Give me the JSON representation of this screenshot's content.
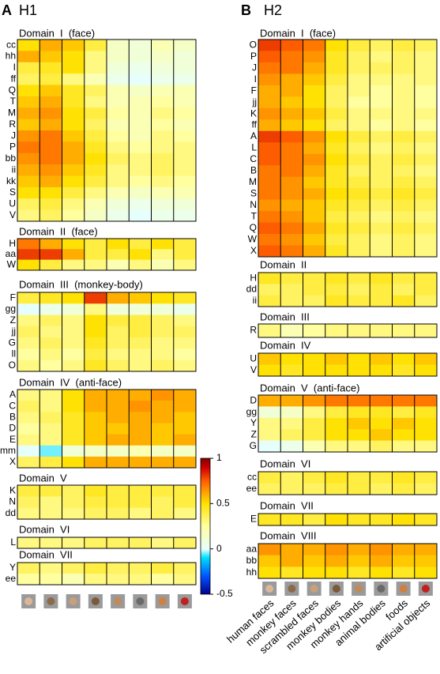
{
  "categories": [
    "human faces",
    "monkey faces",
    "scrambled faces",
    "monkey bodies",
    "monkey hands",
    "animal bodies",
    "foods",
    "artificial objects"
  ],
  "colorbar": {
    "lim": [
      -0.5,
      1
    ],
    "ticks": [
      1,
      0.5,
      0,
      -0.5
    ]
  },
  "panels": [
    {
      "letter": "A",
      "title": "H1",
      "domains": [
        {
          "title": "Domain  I  (face)",
          "rows": [
            "cc",
            "hh",
            "I",
            "ff",
            "Q",
            "T",
            "M",
            "R",
            "J",
            "P",
            "bb",
            "ii",
            "kk",
            "S",
            "U",
            "V"
          ],
          "values": [
            [
              0.5,
              0.6,
              0.55,
              0.4,
              0.15,
              0.1,
              0.2,
              0.15
            ],
            [
              0.6,
              0.55,
              0.5,
              0.3,
              0.15,
              0.1,
              0.15,
              0.1
            ],
            [
              0.4,
              0.45,
              0.5,
              0.3,
              0.1,
              0.05,
              0.1,
              0.1
            ],
            [
              0.35,
              0.4,
              0.3,
              0.2,
              0.05,
              0,
              0.05,
              0.05
            ],
            [
              0.5,
              0.55,
              0.45,
              0.35,
              0.2,
              0.15,
              0.2,
              0.2
            ],
            [
              0.55,
              0.6,
              0.45,
              0.3,
              0.2,
              0.2,
              0.25,
              0.2
            ],
            [
              0.6,
              0.65,
              0.5,
              0.4,
              0.25,
              0.2,
              0.3,
              0.25
            ],
            [
              0.55,
              0.6,
              0.5,
              0.35,
              0.2,
              0.2,
              0.25,
              0.2
            ],
            [
              0.65,
              0.7,
              0.55,
              0.4,
              0.25,
              0.2,
              0.3,
              0.25
            ],
            [
              0.7,
              0.7,
              0.6,
              0.45,
              0.3,
              0.25,
              0.3,
              0.3
            ],
            [
              0.65,
              0.7,
              0.6,
              0.5,
              0.35,
              0.3,
              0.35,
              0.3
            ],
            [
              0.6,
              0.65,
              0.55,
              0.45,
              0.3,
              0.3,
              0.35,
              0.3
            ],
            [
              0.55,
              0.6,
              0.5,
              0.4,
              0.3,
              0.25,
              0.3,
              0.25
            ],
            [
              0.5,
              0.5,
              0.4,
              0.3,
              0.2,
              0.15,
              0.2,
              0.2
            ],
            [
              0.35,
              0.4,
              0.3,
              0.2,
              0.1,
              0.05,
              0.1,
              0.1
            ],
            [
              0.3,
              0.35,
              0.25,
              0.15,
              0.05,
              0,
              0.05,
              0.05
            ]
          ]
        },
        {
          "title": "Domain  II  (face)",
          "rows": [
            "H",
            "aa",
            "W"
          ],
          "values": [
            [
              0.7,
              0.6,
              0.5,
              0.4,
              0.5,
              0.4,
              0.5,
              0.4
            ],
            [
              0.8,
              0.8,
              0.6,
              0.4,
              0.4,
              0.5,
              0.3,
              0.4
            ],
            [
              0.5,
              0.4,
              0.3,
              0.3,
              0.2,
              0.3,
              0.2,
              0.3
            ]
          ]
        },
        {
          "title": "Domain  III  (monkey-body)",
          "rows": [
            "F",
            "gg",
            "Z",
            "jj",
            "G",
            "ll",
            "O"
          ],
          "values": [
            [
              0.4,
              0.45,
              0.5,
              0.8,
              0.6,
              0.55,
              0.5,
              0.45
            ],
            [
              0,
              0.05,
              0.1,
              0.3,
              0.1,
              0.1,
              0.1,
              0.05
            ],
            [
              0.3,
              0.35,
              0.3,
              0.5,
              0.4,
              0.4,
              0.35,
              0.3
            ],
            [
              0.35,
              0.3,
              0.3,
              0.5,
              0.35,
              0.4,
              0.35,
              0.35
            ],
            [
              0.3,
              0.35,
              0.3,
              0.45,
              0.35,
              0.35,
              0.3,
              0.3
            ],
            [
              0.25,
              0.3,
              0.25,
              0.4,
              0.3,
              0.3,
              0.3,
              0.25
            ],
            [
              0.3,
              0.25,
              0.3,
              0.45,
              0.35,
              0.3,
              0.35,
              0.3
            ]
          ]
        },
        {
          "title": "Domain  IV  (anti-face)",
          "rows": [
            "A",
            "C",
            "B",
            "D",
            "E",
            "mm",
            "X"
          ],
          "values": [
            [
              0.3,
              0.3,
              0.5,
              0.6,
              0.6,
              0.6,
              0.65,
              0.6
            ],
            [
              0.35,
              0.3,
              0.5,
              0.6,
              0.6,
              0.65,
              0.6,
              0.6
            ],
            [
              0.3,
              0.35,
              0.45,
              0.55,
              0.6,
              0.6,
              0.6,
              0.55
            ],
            [
              0.25,
              0.3,
              0.45,
              0.55,
              0.55,
              0.6,
              0.55,
              0.55
            ],
            [
              0.3,
              0.3,
              0.45,
              0.55,
              0.6,
              0.6,
              0.55,
              0.6
            ],
            [
              0,
              -0.05,
              0.1,
              0.15,
              0.15,
              0.2,
              0.15,
              0.15
            ],
            [
              0.35,
              0.4,
              0.5,
              0.6,
              0.6,
              0.6,
              0.6,
              0.6
            ]
          ]
        },
        {
          "title": "Domain  V",
          "rows": [
            "K",
            "N",
            "dd"
          ],
          "values": [
            [
              0.4,
              0.4,
              0.35,
              0.45,
              0.4,
              0.4,
              0.4,
              0.4
            ],
            [
              0.35,
              0.3,
              0.35,
              0.4,
              0.4,
              0.4,
              0.35,
              0.4
            ],
            [
              0.3,
              0.3,
              0.3,
              0.35,
              0.35,
              0.3,
              0.35,
              0.3
            ]
          ]
        },
        {
          "title": "Domain  VI",
          "rows": [
            "L"
          ],
          "values": [
            [
              0.3,
              0.3,
              0.3,
              0.35,
              0.35,
              0.35,
              0.3,
              0.35
            ]
          ]
        },
        {
          "title": "Domain  VII",
          "rows": [
            "Y",
            "ee"
          ],
          "values": [
            [
              0.35,
              0.3,
              0.35,
              0.4,
              0.35,
              0.35,
              0.4,
              0.35
            ],
            [
              0.25,
              0.25,
              0.2,
              0.3,
              0.3,
              0.3,
              0.25,
              0.3
            ]
          ]
        }
      ]
    },
    {
      "letter": "B",
      "title": "H2",
      "domains": [
        {
          "title": "Domain  I  (face)",
          "rows": [
            "O",
            "P",
            "J",
            "I",
            "F",
            "jj",
            "K",
            "ff",
            "A",
            "L",
            "C",
            "B",
            "M",
            "S",
            "N",
            "T",
            "Q",
            "W",
            "X"
          ],
          "values": [
            [
              0.8,
              0.75,
              0.7,
              0.5,
              0.4,
              0.35,
              0.4,
              0.35
            ],
            [
              0.75,
              0.7,
              0.65,
              0.45,
              0.35,
              0.3,
              0.35,
              0.3
            ],
            [
              0.7,
              0.7,
              0.6,
              0.45,
              0.35,
              0.35,
              0.35,
              0.3
            ],
            [
              0.65,
              0.6,
              0.55,
              0.4,
              0.3,
              0.3,
              0.3,
              0.3
            ],
            [
              0.6,
              0.6,
              0.5,
              0.35,
              0.3,
              0.25,
              0.3,
              0.25
            ],
            [
              0.6,
              0.55,
              0.5,
              0.35,
              0.25,
              0.25,
              0.3,
              0.25
            ],
            [
              0.65,
              0.6,
              0.55,
              0.4,
              0.3,
              0.3,
              0.3,
              0.3
            ],
            [
              0.6,
              0.55,
              0.5,
              0.35,
              0.3,
              0.25,
              0.3,
              0.25
            ],
            [
              0.8,
              0.75,
              0.65,
              0.5,
              0.4,
              0.35,
              0.4,
              0.35
            ],
            [
              0.75,
              0.7,
              0.6,
              0.45,
              0.35,
              0.3,
              0.35,
              0.3
            ],
            [
              0.75,
              0.7,
              0.65,
              0.5,
              0.4,
              0.35,
              0.4,
              0.35
            ],
            [
              0.7,
              0.7,
              0.6,
              0.45,
              0.35,
              0.35,
              0.35,
              0.3
            ],
            [
              0.7,
              0.65,
              0.55,
              0.45,
              0.4,
              0.35,
              0.4,
              0.35
            ],
            [
              0.7,
              0.65,
              0.6,
              0.5,
              0.45,
              0.4,
              0.45,
              0.4
            ],
            [
              0.65,
              0.6,
              0.55,
              0.45,
              0.4,
              0.35,
              0.4,
              0.35
            ],
            [
              0.7,
              0.65,
              0.55,
              0.4,
              0.35,
              0.3,
              0.35,
              0.3
            ],
            [
              0.75,
              0.7,
              0.6,
              0.45,
              0.4,
              0.35,
              0.4,
              0.35
            ],
            [
              0.7,
              0.65,
              0.55,
              0.4,
              0.35,
              0.3,
              0.35,
              0.3
            ],
            [
              0.75,
              0.7,
              0.6,
              0.45,
              0.35,
              0.3,
              0.35,
              0.3
            ]
          ]
        },
        {
          "title": "Domain  II",
          "rows": [
            "H",
            "dd",
            "ii"
          ],
          "values": [
            [
              0.45,
              0.4,
              0.4,
              0.45,
              0.4,
              0.45,
              0.4,
              0.4
            ],
            [
              0.35,
              0.35,
              0.4,
              0.4,
              0.35,
              0.4,
              0.35,
              0.4
            ],
            [
              0.4,
              0.35,
              0.35,
              0.45,
              0.4,
              0.4,
              0.45,
              0.35
            ]
          ]
        },
        {
          "title": "Domain  III",
          "rows": [
            "R"
          ],
          "values": [
            [
              0.3,
              0.2,
              0.25,
              0.3,
              0.3,
              0.3,
              0.3,
              0.3
            ]
          ]
        },
        {
          "title": "Domain  IV",
          "rows": [
            "U",
            "V"
          ],
          "values": [
            [
              0.55,
              0.5,
              0.5,
              0.55,
              0.5,
              0.55,
              0.5,
              0.55
            ],
            [
              0.5,
              0.45,
              0.5,
              0.5,
              0.5,
              0.5,
              0.45,
              0.5
            ]
          ]
        },
        {
          "title": "Domain  V  (anti-face)",
          "rows": [
            "D",
            "gg",
            "Y",
            "Z",
            "G"
          ],
          "values": [
            [
              0.6,
              0.6,
              0.65,
              0.7,
              0.7,
              0.7,
              0.7,
              0.7
            ],
            [
              0.1,
              0.15,
              0.3,
              0.4,
              0.45,
              0.45,
              0.4,
              0.45
            ],
            [
              0.3,
              0.3,
              0.4,
              0.5,
              0.55,
              0.5,
              0.55,
              0.5
            ],
            [
              0.3,
              0.35,
              0.4,
              0.5,
              0.5,
              0.55,
              0.5,
              0.5
            ],
            [
              0,
              0.05,
              0.2,
              0.3,
              0.3,
              0.35,
              0.3,
              0.3
            ]
          ]
        },
        {
          "title": "Domain  VI",
          "rows": [
            "cc",
            "ee"
          ],
          "values": [
            [
              0.4,
              0.35,
              0.4,
              0.45,
              0.4,
              0.4,
              0.45,
              0.4
            ],
            [
              0.35,
              0.35,
              0.35,
              0.4,
              0.4,
              0.35,
              0.4,
              0.35
            ]
          ]
        },
        {
          "title": "Domain  VII",
          "rows": [
            "E"
          ],
          "values": [
            [
              0.45,
              0.45,
              0.4,
              0.5,
              0.45,
              0.45,
              0.5,
              0.45
            ]
          ]
        },
        {
          "title": "Domain  VIII",
          "rows": [
            "aa",
            "bb",
            "hh"
          ],
          "values": [
            [
              0.65,
              0.6,
              0.6,
              0.65,
              0.6,
              0.65,
              0.6,
              0.6
            ],
            [
              0.55,
              0.6,
              0.55,
              0.6,
              0.55,
              0.6,
              0.55,
              0.55
            ],
            [
              0.5,
              0.45,
              0.5,
              0.5,
              0.45,
              0.5,
              0.45,
              0.5
            ]
          ]
        }
      ]
    }
  ]
}
